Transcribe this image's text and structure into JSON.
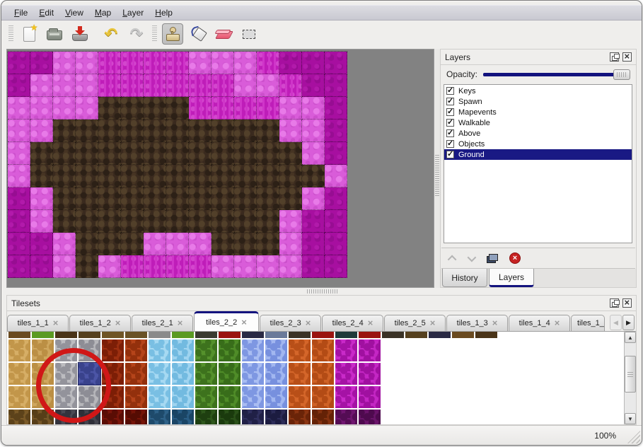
{
  "menu": {
    "items": [
      "File",
      "Edit",
      "View",
      "Map",
      "Layer",
      "Help"
    ]
  },
  "toolbar": {
    "tools": [
      "new-file",
      "open",
      "save",
      "undo",
      "redo",
      "stamp",
      "fill",
      "eraser",
      "select-rect"
    ],
    "active_tool": "stamp"
  },
  "layers_panel": {
    "title": "Layers",
    "window_icons": [
      "float-icon",
      "close-icon"
    ],
    "opacity_label": "Opacity:",
    "opacity_percent": 100,
    "layers": [
      {
        "name": "Keys",
        "checked": true
      },
      {
        "name": "Spawn",
        "checked": true
      },
      {
        "name": "Mapevents",
        "checked": true
      },
      {
        "name": "Walkable",
        "checked": true
      },
      {
        "name": "Above",
        "checked": true
      },
      {
        "name": "Objects",
        "checked": true
      },
      {
        "name": "Ground",
        "checked": true
      }
    ],
    "selected_layer": "Ground",
    "actions": [
      "move-layer-up",
      "move-layer-down",
      "duplicate-layer",
      "delete-layer"
    ],
    "tabs": [
      "History",
      "Layers"
    ],
    "active_tab": "Layers",
    "check_glyph": "✓"
  },
  "tilesets_panel": {
    "title": "Tilesets",
    "window_icons": [
      "float-icon",
      "close-icon"
    ],
    "tabs": [
      "tiles_1_1",
      "tiles_1_2",
      "tiles_2_1",
      "tiles_2_2",
      "tiles_2_3",
      "tiles_2_4",
      "tiles_2_5",
      "tiles_1_3",
      "tiles_1_4",
      "tiles_1_"
    ],
    "active_tab": "tiles_2_2",
    "close_glyph": "×",
    "scroll_left_glyph": "◀",
    "scroll_right_glyph": "▶",
    "grid": {
      "tile_pitch": 33,
      "top_sliver_colors": [
        "#6a4a20",
        "#5a9a22",
        "#4a3418",
        "#55401e",
        "#6f5526",
        "#6a5226",
        "#8a8a8a",
        "#5a9a22",
        "#3a3a30",
        "#9a1410",
        "#2a2a44",
        "#6a7a9a",
        "#3a3226",
        "#9a1410",
        "#1f3a3a",
        "#9a1410",
        "#3a3226",
        "#55401e",
        "#2a2a44",
        "#6a4a20",
        "#4a3418"
      ],
      "columns": [
        {
          "base": "#d6ae66",
          "spot": "#c2964a"
        },
        {
          "base": "#cfa75e",
          "spot": "#bb8f44"
        },
        {
          "base": "#bcbcc0",
          "spot": "#93939b"
        },
        {
          "base": "#b6b6ba",
          "spot": "#8d8d95"
        },
        {
          "base": "#9c2f10",
          "spot": "#7c1e06"
        },
        {
          "base": "#b5441a",
          "spot": "#93300c"
        },
        {
          "base": "#a6d9f2",
          "spot": "#79bfe3"
        },
        {
          "base": "#9fd4f0",
          "spot": "#72bae0"
        },
        {
          "base": "#55912c",
          "spot": "#3d721d"
        },
        {
          "base": "#4f8c28",
          "spot": "#386d1a"
        },
        {
          "base": "#a9bdf2",
          "spot": "#7e97e2"
        },
        {
          "base": "#a2b7f0",
          "spot": "#7790de"
        },
        {
          "base": "#d4662a",
          "spot": "#b84f18"
        },
        {
          "base": "#cf6226",
          "spot": "#b34b15"
        },
        {
          "base": "#c92ac9",
          "spot": "#a512a5"
        },
        {
          "base": "#c426c4",
          "spot": "#a010a0"
        }
      ],
      "bottom_row_colors": [
        {
          "base": "#7a5a28",
          "spot": "#5c421a"
        },
        {
          "base": "#755627",
          "spot": "#573e18"
        },
        {
          "base": "#4a4a54",
          "spot": "#33333d"
        },
        {
          "base": "#45454e",
          "spot": "#2f2f38"
        },
        {
          "base": "#7a150a",
          "spot": "#5a0d04"
        },
        {
          "base": "#751408",
          "spot": "#550c03"
        },
        {
          "base": "#2f6288",
          "spot": "#1e4a6b"
        },
        {
          "base": "#2a5d84",
          "spot": "#1a4565"
        },
        {
          "base": "#2e571c",
          "spot": "#1e3f10"
        },
        {
          "base": "#2a5119",
          "spot": "#1a3a0d"
        },
        {
          "base": "#30305e",
          "spot": "#202046"
        },
        {
          "base": "#2c2c58",
          "spot": "#1c1c40"
        },
        {
          "base": "#8a3512",
          "spot": "#6a2408"
        },
        {
          "base": "#843210",
          "spot": "#642206"
        },
        {
          "base": "#701670",
          "spot": "#540c54"
        },
        {
          "base": "#6a146a",
          "spot": "#4e0a4e"
        }
      ]
    },
    "selection": {
      "column": 3,
      "row": 1,
      "highlight_base": "#4c55a6",
      "highlight_spot": "#39428c"
    },
    "annotation": {
      "type": "red-circle",
      "color": "#d01717"
    }
  },
  "status_bar": {
    "zoom_level": "100%"
  },
  "map": {
    "tile_size": 32,
    "columns": 15,
    "visible_rows": 10,
    "palette": {
      "D": "dark-magenta",
      "M": "magenta-columns",
      "L": "light-orchid",
      "B": "dark-brown-dirt"
    },
    "rows": [
      "DDLLMMMMLLLMDDD",
      "DLLLMMMMMMLLMDD",
      "LLLLBBBBMMMMLLD",
      "LLBBBBBBBBBBLLD",
      "LBBBBBBBBBBBBLD",
      "LBBBBBBBBBBBBBL",
      "DLBBBBBBBBBBBLD",
      "DLBBBBBBBBBBLDD",
      "DDLBBBLLLBBBLDD",
      "DDLBLMMMMLLLLDD"
    ]
  }
}
